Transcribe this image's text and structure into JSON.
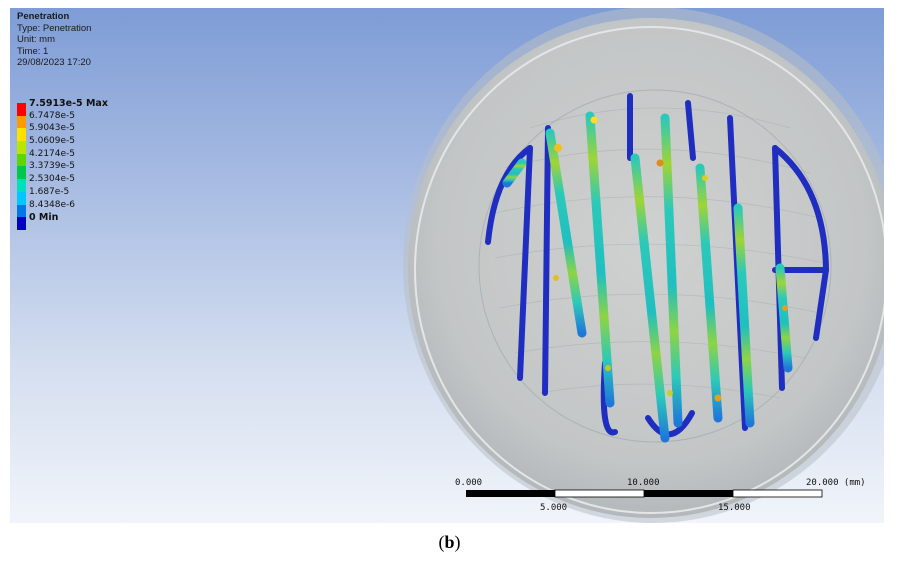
{
  "result": {
    "title": "Penetration",
    "type_line": "Type: Penetration",
    "unit_line": "Unit: mm",
    "time_line": "Time: 1",
    "date_line": "29/08/2023 17:20"
  },
  "legend": {
    "max_label": "7.5913e-5 Max",
    "min_label": "0 Min",
    "levels": [
      {
        "label": "7.5913e-5 Max",
        "color": "#ff0000",
        "bold": true
      },
      {
        "label": "6.7478e-5",
        "color": "#ff9a00",
        "bold": false
      },
      {
        "label": "5.9043e-5",
        "color": "#ffe000",
        "bold": false
      },
      {
        "label": "5.0609e-5",
        "color": "#b8e600",
        "bold": false
      },
      {
        "label": "4.2174e-5",
        "color": "#5ad800",
        "bold": false
      },
      {
        "label": "3.3739e-5",
        "color": "#00c84a",
        "bold": false
      },
      {
        "label": "2.5304e-5",
        "color": "#00e0c0",
        "bold": false
      },
      {
        "label": "1.687e-5",
        "color": "#00c8ff",
        "bold": false
      },
      {
        "label": "8.4348e-6",
        "color": "#0078e6",
        "bold": false
      },
      {
        "label": "0 Min",
        "color": "#0000c0",
        "bold": true
      }
    ]
  },
  "scale_bar": {
    "top_labels": [
      "0.000",
      "10.000",
      "20.000 (mm)"
    ],
    "bottom_labels": [
      "5.000",
      "15.000"
    ]
  },
  "caption": {
    "open": "(",
    "letter": "b",
    "close": ")"
  },
  "colors": {
    "min_blue": "#1f2ec0",
    "mid_cyan": "#22c3b8",
    "disc": "#c9cbcb"
  }
}
